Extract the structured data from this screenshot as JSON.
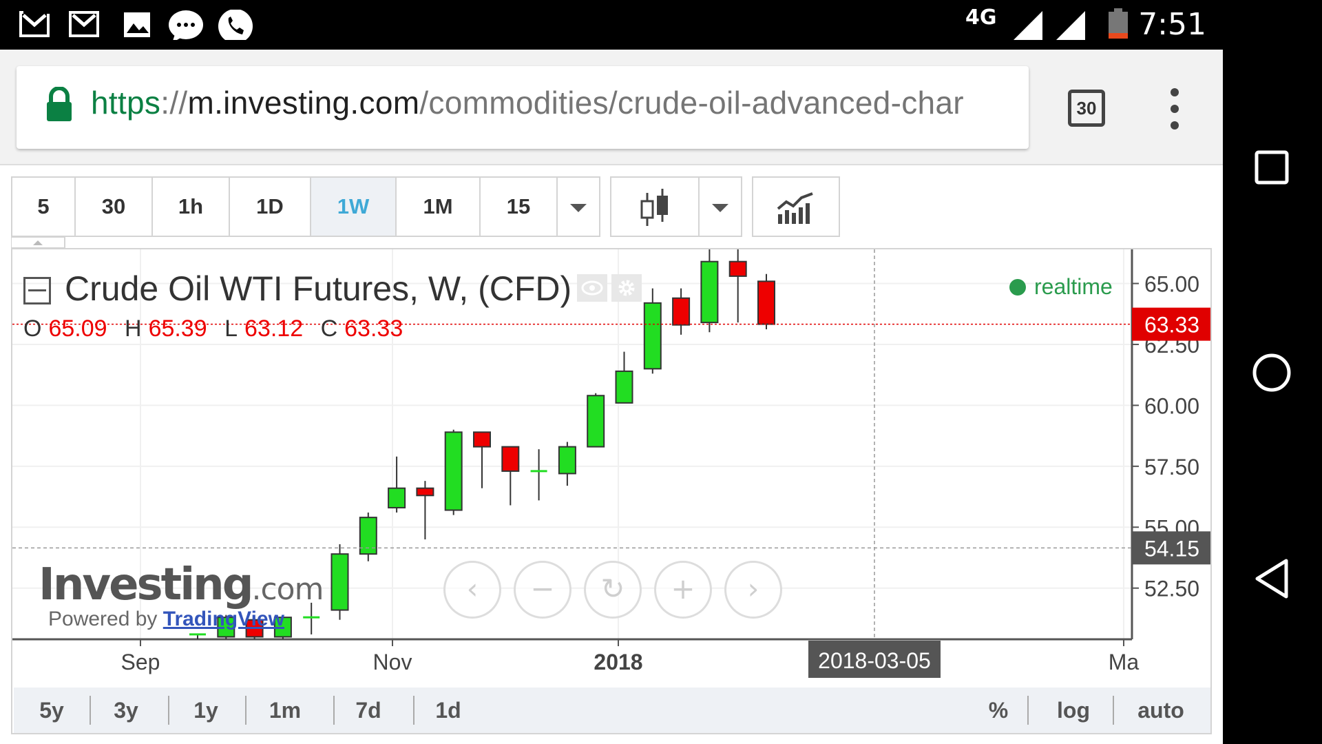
{
  "status_bar": {
    "time": "7:51",
    "network": "4G",
    "icons": [
      "gmail-icon",
      "gmail-icon",
      "gallery-icon",
      "messages-icon",
      "phone-icon"
    ]
  },
  "browser": {
    "url_scheme": "https",
    "url_sep": "://",
    "url_host": "m.investing.com",
    "url_path": "/commodities/crude-oil-advanced-char",
    "tab_count": "30"
  },
  "toolbar": {
    "intervals": [
      "5",
      "30",
      "1h",
      "1D",
      "1W",
      "1M",
      "15"
    ],
    "active_interval": "1W"
  },
  "chart": {
    "title": "Crude Oil WTI Futures, W, (CFD)",
    "ohlc": {
      "o_label": "O",
      "o": "65.09",
      "h_label": "H",
      "h": "65.39",
      "l_label": "L",
      "l": "63.12",
      "c_label": "C",
      "c": "63.33"
    },
    "realtime_label": "realtime",
    "logo_main": "Investing",
    "logo_suffix": ".com",
    "powered_by": "Powered by",
    "powered_brand": "TradingView",
    "colors": {
      "up": "#22dd22",
      "down": "#ee0000",
      "price_tag": "#e00000",
      "crosshair_tag": "#555555"
    }
  },
  "chart_data": {
    "type": "candlestick",
    "title": "Crude Oil WTI Futures, W, (CFD)",
    "y_axis_ticks": [
      "65.00",
      "62.50",
      "60.00",
      "57.50",
      "55.00",
      "52.50"
    ],
    "y_tick_values": [
      65.0,
      62.5,
      60.0,
      57.5,
      55.0,
      52.5
    ],
    "x_axis_ticks": [
      "Sep",
      "Nov",
      "2018",
      "Ma"
    ],
    "last_price_tag": "63.33",
    "crosshair_price_tag": "54.15",
    "crosshair_date_tag": "2018-03-05",
    "ylim": [
      50.4,
      66.4
    ],
    "candles": [
      {
        "o": 50.5,
        "h": 50.6,
        "l": 50.4,
        "c": 50.6
      },
      {
        "o": 50.5,
        "h": 51.4,
        "l": 50.4,
        "c": 51.3
      },
      {
        "o": 51.2,
        "h": 51.3,
        "l": 50.4,
        "c": 50.5
      },
      {
        "o": 50.5,
        "h": 51.4,
        "l": 50.4,
        "c": 51.3
      },
      {
        "o": 51.3,
        "h": 51.9,
        "l": 50.6,
        "c": 51.3
      },
      {
        "o": 51.6,
        "h": 54.3,
        "l": 51.2,
        "c": 53.9
      },
      {
        "o": 53.9,
        "h": 55.6,
        "l": 53.6,
        "c": 55.4
      },
      {
        "o": 55.8,
        "h": 57.9,
        "l": 55.6,
        "c": 56.6
      },
      {
        "o": 56.6,
        "h": 56.9,
        "l": 54.5,
        "c": 56.3
      },
      {
        "o": 55.7,
        "h": 59.0,
        "l": 55.5,
        "c": 58.9
      },
      {
        "o": 58.9,
        "h": 58.9,
        "l": 56.6,
        "c": 58.3
      },
      {
        "o": 58.3,
        "h": 58.3,
        "l": 55.9,
        "c": 57.3
      },
      {
        "o": 57.3,
        "h": 58.2,
        "l": 56.1,
        "c": 57.3
      },
      {
        "o": 57.2,
        "h": 58.5,
        "l": 56.7,
        "c": 58.3
      },
      {
        "o": 58.3,
        "h": 60.5,
        "l": 58.3,
        "c": 60.4
      },
      {
        "o": 60.1,
        "h": 62.2,
        "l": 60.1,
        "c": 61.4
      },
      {
        "o": 61.5,
        "h": 64.8,
        "l": 61.3,
        "c": 64.2
      },
      {
        "o": 64.4,
        "h": 64.8,
        "l": 62.9,
        "c": 63.3
      },
      {
        "o": 63.4,
        "h": 66.4,
        "l": 63.0,
        "c": 65.9
      },
      {
        "o": 65.9,
        "h": 66.4,
        "l": 63.4,
        "c": 65.3
      },
      {
        "o": 65.09,
        "h": 65.39,
        "l": 63.12,
        "c": 63.33
      }
    ],
    "grid": true
  },
  "range_bar": {
    "left": [
      "5y",
      "3y",
      "1y",
      "1m",
      "7d",
      "1d"
    ],
    "right": [
      "%",
      "log",
      "auto"
    ]
  },
  "android_nav": [
    "recents-button",
    "home-button",
    "back-button"
  ]
}
